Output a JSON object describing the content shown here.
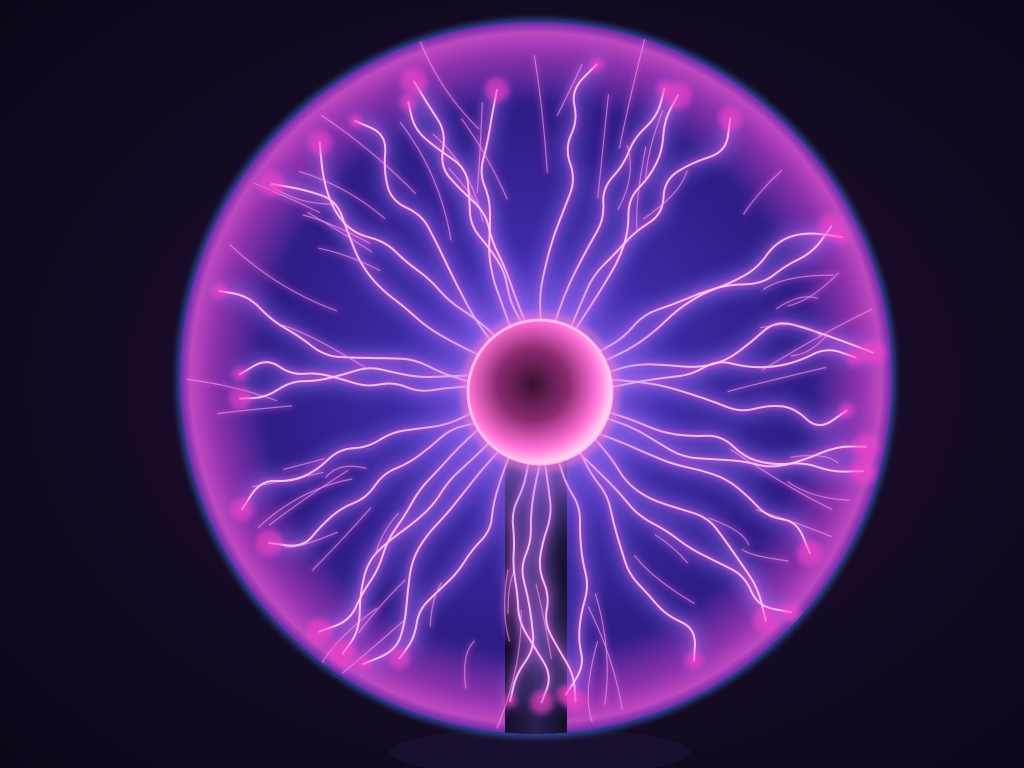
{
  "scene": {
    "subject": "plasma-globe",
    "colors": {
      "background": "#12081e",
      "background_edge": "#0c0616",
      "glass_rim": "#3d6ee0",
      "filament_core": "#e8dcff",
      "filament_violet": "#9a7bff",
      "filament_magenta": "#ff3fc8",
      "electrode_glow": "#ff6fd6",
      "base_dark": "#1a1230"
    }
  }
}
